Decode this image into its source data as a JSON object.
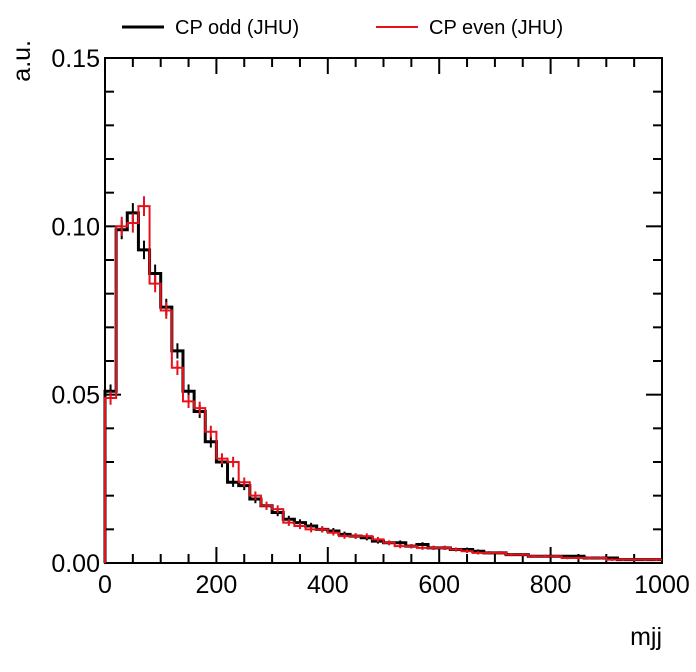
{
  "chart_data": {
    "type": "line",
    "drawstyle": "steps-post",
    "title": "",
    "xlabel": "mjj",
    "ylabel": "a.u.",
    "xlim": [
      0,
      1000
    ],
    "ylim": [
      0,
      0.15
    ],
    "xticks": [
      0,
      200,
      400,
      600,
      800,
      1000
    ],
    "xtick_labels": [
      "0",
      "200",
      "400",
      "600",
      "800",
      "1000"
    ],
    "yticks": [
      0.0,
      0.05,
      0.1,
      0.15
    ],
    "ytick_labels": [
      "0.00",
      "0.05",
      "0.10",
      "0.15"
    ],
    "grid": false,
    "legend_position": "top",
    "bin_edges": [
      0,
      20,
      40,
      60,
      80,
      100,
      120,
      140,
      160,
      180,
      200,
      220,
      240,
      260,
      280,
      300,
      320,
      340,
      360,
      380,
      400,
      420,
      440,
      460,
      480,
      500,
      520,
      540,
      560,
      580,
      600,
      620,
      640,
      660,
      680,
      700,
      720,
      740,
      760,
      780,
      800,
      820,
      840,
      860,
      880,
      900,
      920,
      940,
      960,
      980,
      1000
    ],
    "series": [
      {
        "name": "CP odd (JHU)",
        "color": "#000000",
        "values": [
          0.051,
          0.099,
          0.104,
          0.093,
          0.086,
          0.076,
          0.063,
          0.051,
          0.045,
          0.036,
          0.03,
          0.024,
          0.023,
          0.019,
          0.017,
          0.015,
          0.013,
          0.012,
          0.011,
          0.01,
          0.0095,
          0.0085,
          0.008,
          0.0075,
          0.0065,
          0.006,
          0.006,
          0.005,
          0.0055,
          0.0045,
          0.0045,
          0.004,
          0.004,
          0.0035,
          0.003,
          0.003,
          0.0025,
          0.0025,
          0.002,
          0.002,
          0.002,
          0.002,
          0.002,
          0.0015,
          0.0015,
          0.0015,
          0.001,
          0.001,
          0.001,
          0.001
        ]
      },
      {
        "name": "CP even (JHU)",
        "color": "#e8111b",
        "values": [
          0.049,
          0.1,
          0.101,
          0.106,
          0.083,
          0.075,
          0.058,
          0.048,
          0.046,
          0.039,
          0.031,
          0.03,
          0.024,
          0.02,
          0.017,
          0.016,
          0.012,
          0.011,
          0.01,
          0.01,
          0.009,
          0.008,
          0.008,
          0.008,
          0.007,
          0.006,
          0.005,
          0.005,
          0.0045,
          0.0045,
          0.0045,
          0.004,
          0.0035,
          0.003,
          0.003,
          0.003,
          0.0025,
          0.0025,
          0.002,
          0.002,
          0.002,
          0.0015,
          0.0015,
          0.0015,
          0.0015,
          0.001,
          0.001,
          0.001,
          0.001,
          0.001
        ]
      }
    ]
  }
}
